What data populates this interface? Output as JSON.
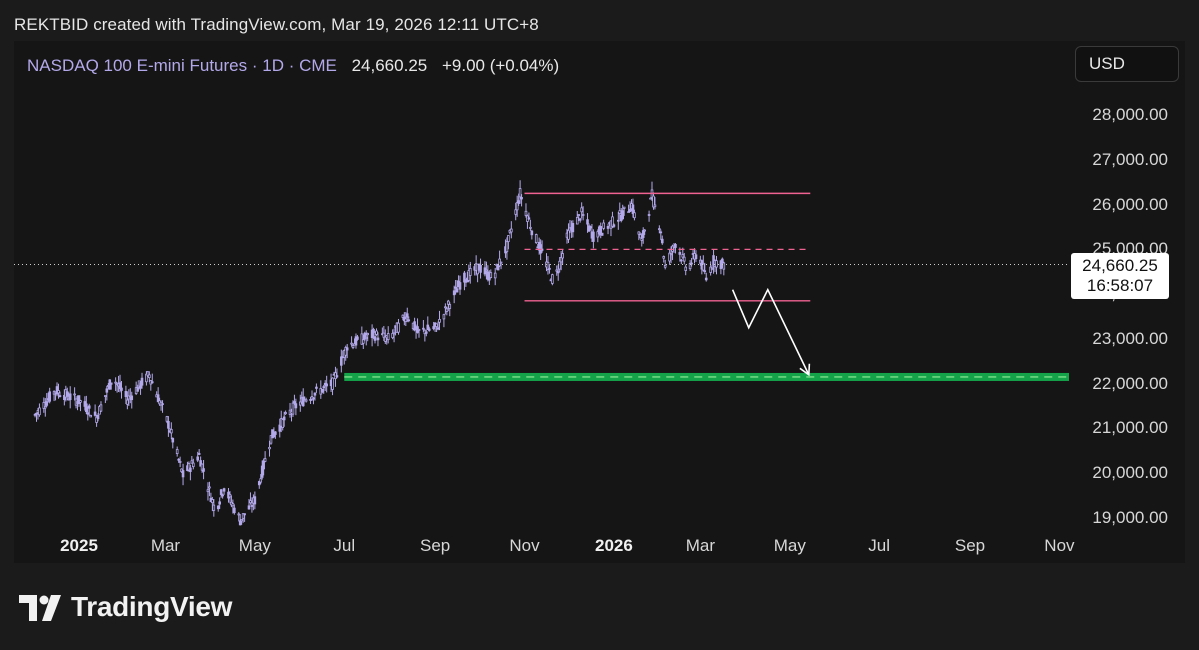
{
  "header": {
    "credit": "REKTBID created with TradingView.com, Mar 19, 2026 12:11 UTC+8"
  },
  "symbol": {
    "name": "NASDAQ 100 E-mini Futures · 1D · CME",
    "last": "24,660.25",
    "change": "+9.00 (+0.04%)"
  },
  "currency": "USD",
  "price_tag": {
    "price": "24,660.25",
    "countdown": "16:58:07"
  },
  "brand": "TradingView",
  "colors": {
    "candle": "#b3a9ea",
    "resistance": "#f06292",
    "target_zone": "#15a34a",
    "target_dash": "#7ee08a",
    "arrow": "#ffffff"
  },
  "chart_data": {
    "type": "candlestick",
    "title": "",
    "xlabel": "",
    "ylabel": "",
    "ylim": [
      18900,
      28900
    ],
    "y_ticks": [
      {
        "value": 19000,
        "label": "19,000.00"
      },
      {
        "value": 20000,
        "label": "20,000.00"
      },
      {
        "value": 21000,
        "label": "21,000.00"
      },
      {
        "value": 22000,
        "label": "22,000.00"
      },
      {
        "value": 23000,
        "label": "23,000.00"
      },
      {
        "value": 24000,
        "label": "24,000.00"
      },
      {
        "value": 25000,
        "label": "25,000.00"
      },
      {
        "value": 26000,
        "label": "26,000.00"
      },
      {
        "value": 27000,
        "label": "27,000.00"
      },
      {
        "value": 28000,
        "label": "28,000.00"
      }
    ],
    "x_ticks": [
      {
        "label": "2025",
        "date": "2025-01-01",
        "year": true
      },
      {
        "label": "Mar",
        "date": "2025-03-01",
        "year": false
      },
      {
        "label": "May",
        "date": "2025-05-01",
        "year": false
      },
      {
        "label": "Jul",
        "date": "2025-07-01",
        "year": false
      },
      {
        "label": "Sep",
        "date": "2025-09-01",
        "year": false
      },
      {
        "label": "Nov",
        "date": "2025-11-01",
        "year": false
      },
      {
        "label": "2026",
        "date": "2026-01-01",
        "year": true
      },
      {
        "label": "Mar",
        "date": "2026-03-01",
        "year": false
      },
      {
        "label": "May",
        "date": "2026-05-01",
        "year": false
      },
      {
        "label": "Jul",
        "date": "2026-07-01",
        "year": false
      },
      {
        "label": "Sep",
        "date": "2026-09-01",
        "year": false
      },
      {
        "label": "Nov",
        "date": "2026-11-01",
        "year": false
      }
    ],
    "last_price": 24660.25,
    "close_path": [
      [
        "2024-12-02",
        21300
      ],
      [
        "2024-12-16",
        21850
      ],
      [
        "2025-01-02",
        21600
      ],
      [
        "2025-01-13",
        21250
      ],
      [
        "2025-01-24",
        22150
      ],
      [
        "2025-02-03",
        21650
      ],
      [
        "2025-02-18",
        22200
      ],
      [
        "2025-03-03",
        21100
      ],
      [
        "2025-03-13",
        19950
      ],
      [
        "2025-03-24",
        20400
      ],
      [
        "2025-04-04",
        19150
      ],
      [
        "2025-04-10",
        19700
      ],
      [
        "2025-04-21",
        18950
      ],
      [
        "2025-05-01",
        19400
      ],
      [
        "2025-05-12",
        20800
      ],
      [
        "2025-05-27",
        21450
      ],
      [
        "2025-06-06",
        21700
      ],
      [
        "2025-06-23",
        22000
      ],
      [
        "2025-07-03",
        22850
      ],
      [
        "2025-07-21",
        23100
      ],
      [
        "2025-08-01",
        23000
      ],
      [
        "2025-08-13",
        23550
      ],
      [
        "2025-08-20",
        23150
      ],
      [
        "2025-09-02",
        23250
      ],
      [
        "2025-09-19",
        24300
      ],
      [
        "2025-10-01",
        24600
      ],
      [
        "2025-10-10",
        24350
      ],
      [
        "2025-10-20",
        25050
      ],
      [
        "2025-10-29",
        26250
      ],
      [
        "2025-11-07",
        25350
      ],
      [
        "2025-11-14",
        24850
      ],
      [
        "2025-11-21",
        24250
      ],
      [
        "2025-12-01",
        25350
      ],
      [
        "2025-12-10",
        25800
      ],
      [
        "2025-12-18",
        25300
      ],
      [
        "2026-01-02",
        25650
      ],
      [
        "2026-01-09",
        25850
      ],
      [
        "2026-01-13",
        26000
      ],
      [
        "2026-01-20",
        25150
      ],
      [
        "2026-01-27",
        26200
      ],
      [
        "2026-02-02",
        25450
      ],
      [
        "2026-02-05",
        24600
      ],
      [
        "2026-02-12",
        25150
      ],
      [
        "2026-02-20",
        24550
      ],
      [
        "2026-02-27",
        24950
      ],
      [
        "2026-03-05",
        24350
      ],
      [
        "2026-03-10",
        24750
      ],
      [
        "2026-03-17",
        24660
      ]
    ],
    "annotations": {
      "range_top": 26250,
      "range_mid": 25000,
      "range_bottom": 23850,
      "range_from": "2025-11-01",
      "range_to": "2026-05-15",
      "target_level": 22150,
      "target_from": "2025-07-01",
      "projection": [
        [
          "2026-03-23",
          24100
        ],
        [
          "2026-04-03",
          23250
        ],
        [
          "2026-04-16",
          24100
        ],
        [
          "2026-05-14",
          22200
        ]
      ]
    }
  }
}
